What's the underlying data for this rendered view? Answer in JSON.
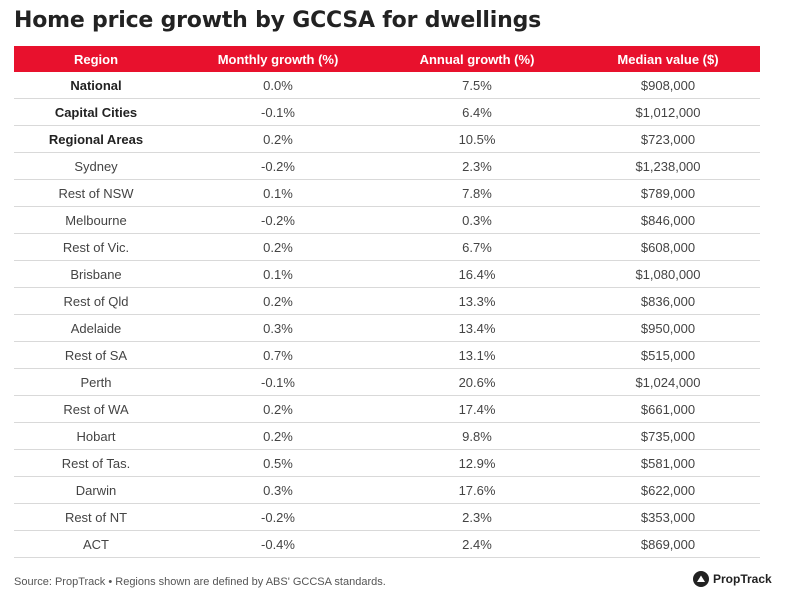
{
  "title": "Home price growth by GCCSA for dwellings",
  "chart_data": {
    "type": "table",
    "title": "Home price growth by GCCSA for dwellings",
    "columns": [
      "Region",
      "Monthly growth (%)",
      "Annual growth (%)",
      "Median value ($)"
    ],
    "rows": [
      {
        "region": "National",
        "monthly": "0.0%",
        "annual": "7.5%",
        "median": "$908,000",
        "bold": true
      },
      {
        "region": "Capital Cities",
        "monthly": "-0.1%",
        "annual": "6.4%",
        "median": "$1,012,000",
        "bold": true
      },
      {
        "region": "Regional Areas",
        "monthly": "0.2%",
        "annual": "10.5%",
        "median": "$723,000",
        "bold": true
      },
      {
        "region": "Sydney",
        "monthly": "-0.2%",
        "annual": "2.3%",
        "median": "$1,238,000",
        "bold": false
      },
      {
        "region": "Rest of NSW",
        "monthly": "0.1%",
        "annual": "7.8%",
        "median": "$789,000",
        "bold": false
      },
      {
        "region": "Melbourne",
        "monthly": "-0.2%",
        "annual": "0.3%",
        "median": "$846,000",
        "bold": false
      },
      {
        "region": "Rest of Vic.",
        "monthly": "0.2%",
        "annual": "6.7%",
        "median": "$608,000",
        "bold": false
      },
      {
        "region": "Brisbane",
        "monthly": "0.1%",
        "annual": "16.4%",
        "median": "$1,080,000",
        "bold": false
      },
      {
        "region": "Rest of Qld",
        "monthly": "0.2%",
        "annual": "13.3%",
        "median": "$836,000",
        "bold": false
      },
      {
        "region": "Adelaide",
        "monthly": "0.3%",
        "annual": "13.4%",
        "median": "$950,000",
        "bold": false
      },
      {
        "region": "Rest of SA",
        "monthly": "0.7%",
        "annual": "13.1%",
        "median": "$515,000",
        "bold": false
      },
      {
        "region": "Perth",
        "monthly": "-0.1%",
        "annual": "20.6%",
        "median": "$1,024,000",
        "bold": false
      },
      {
        "region": "Rest of WA",
        "monthly": "0.2%",
        "annual": "17.4%",
        "median": "$661,000",
        "bold": false
      },
      {
        "region": "Hobart",
        "monthly": "0.2%",
        "annual": "9.8%",
        "median": "$735,000",
        "bold": false
      },
      {
        "region": "Rest of Tas.",
        "monthly": "0.5%",
        "annual": "12.9%",
        "median": "$581,000",
        "bold": false
      },
      {
        "region": "Darwin",
        "monthly": "0.3%",
        "annual": "17.6%",
        "median": "$622,000",
        "bold": false
      },
      {
        "region": "Rest of NT",
        "monthly": "-0.2%",
        "annual": "2.3%",
        "median": "$353,000",
        "bold": false
      },
      {
        "region": "ACT",
        "monthly": "-0.4%",
        "annual": "2.4%",
        "median": "$869,000",
        "bold": false
      }
    ]
  },
  "footer": {
    "source": "Source: PropTrack • Regions shown are defined by ABS' GCCSA standards.",
    "logo_text": "PropTrack",
    "logo_icon": "proptrack-logo-icon"
  },
  "colors": {
    "header_bg": "#e8112d",
    "header_text": "#ffffff",
    "row_divider": "#d9d9d9"
  }
}
